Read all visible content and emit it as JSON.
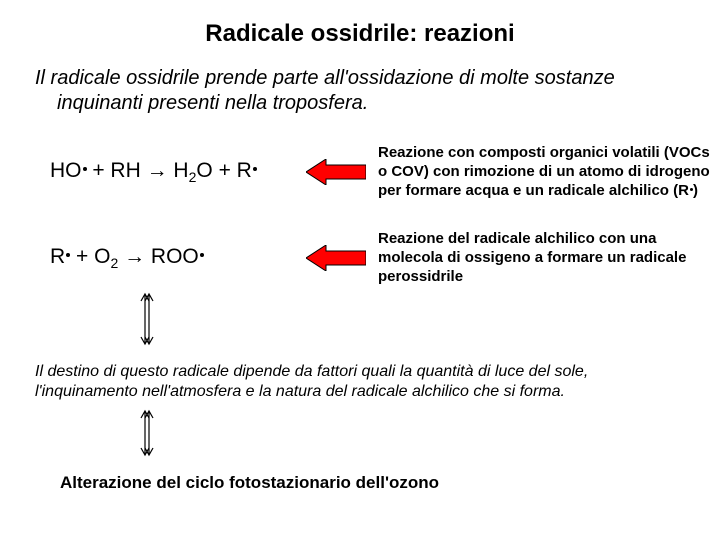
{
  "title": "Radicale ossidrile: reazioni",
  "intro": "Il radicale ossidrile prende parte all'ossidazione di molte sostanze inquinanti presenti nella troposfera.",
  "reaction1": {
    "eq_html": "HO<span class='dot'></span> + RH → H<sub>2</sub>O + R<span class='dot'></span>",
    "desc_html": "Reazione con composti organici volatili (VOCs o COV) con rimozione di un atomo di idrogeno per formare acqua e un radicale alchilico (R<span class='dot' style='vertical-align:4px;width:3px;height:3px'></span>)"
  },
  "reaction2": {
    "eq_html": "R<span class='dot'></span> + O<sub>2</sub> → ROO<span class='dot'></span>",
    "desc_html": "Reazione del radicale alchilico con una molecola di ossigeno a formare un radicale <b>perossidrile</b>",
    "desc_prefix_weight": "normal"
  },
  "footnote": "Il destino di questo radicale dipende da fattori quali la quantità di luce del sole, l'inquinamento nell'atmosfera e la natura del radicale alchilico che si forma.",
  "final": "Alterazione del ciclo fotostazionario dell'ozono",
  "arrow": {
    "fill": "#ff0000",
    "stroke": "#000000",
    "width": 60,
    "height": 26
  },
  "vert_arrow": {
    "stroke": "#000000",
    "width": 14,
    "height": 50
  }
}
